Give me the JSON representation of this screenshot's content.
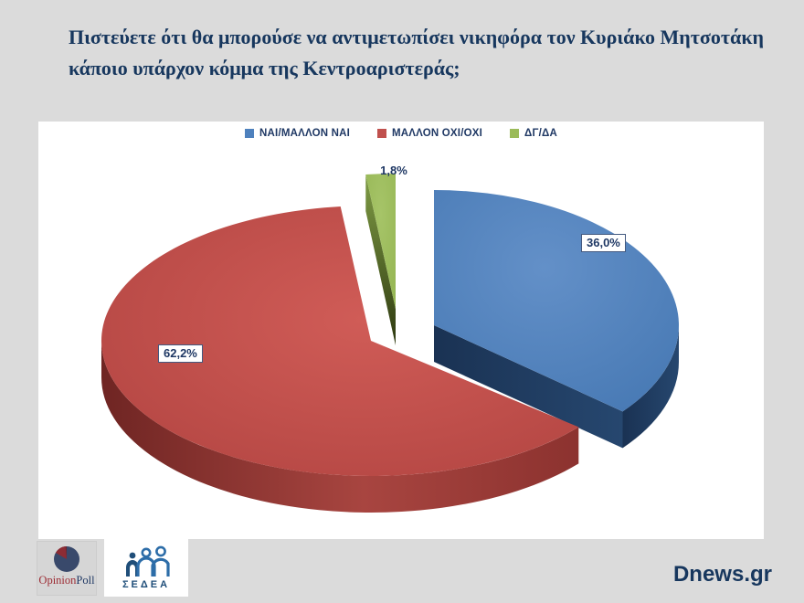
{
  "title": {
    "text": "Πιστεύετε ότι θα μπορούσε να αντιμετωπίσει νικηφόρα τον Κυριάκο Μητσοτάκη κάποιο υπάρχον κόμμα της Κεντροαριστεράς;"
  },
  "theme": {
    "background": "#dbdbdb",
    "panel": "#ffffff",
    "text_navy": "#17375e"
  },
  "chart_data": {
    "type": "pie",
    "style": "3d-exploded",
    "labels": [
      "ΝΑΙ/ΜΑΛΛΟΝ ΝΑΙ",
      "ΜΑΛΛΟΝ ΟΧΙ/ΟΧΙ",
      "ΔΓ/ΔΑ"
    ],
    "values": [
      36.0,
      62.2,
      1.8
    ],
    "value_labels": [
      "36,0%",
      "62,2%",
      "1,8%"
    ],
    "colors": [
      "#4e81bd",
      "#c0504d",
      "#9bbb59"
    ],
    "side_colors": [
      "#1d3b60",
      "#8e3431",
      "#47561e"
    ],
    "legend_position": "top",
    "start_angle_deg": 0,
    "clockwise": true,
    "grid": false
  },
  "footer": {
    "opinionpoll": {
      "part1": "Opinion",
      "part2": "Poll"
    },
    "sedea": {
      "label": "ΣΕΔΕΑ"
    },
    "site": {
      "label": "Dnews.gr"
    }
  }
}
